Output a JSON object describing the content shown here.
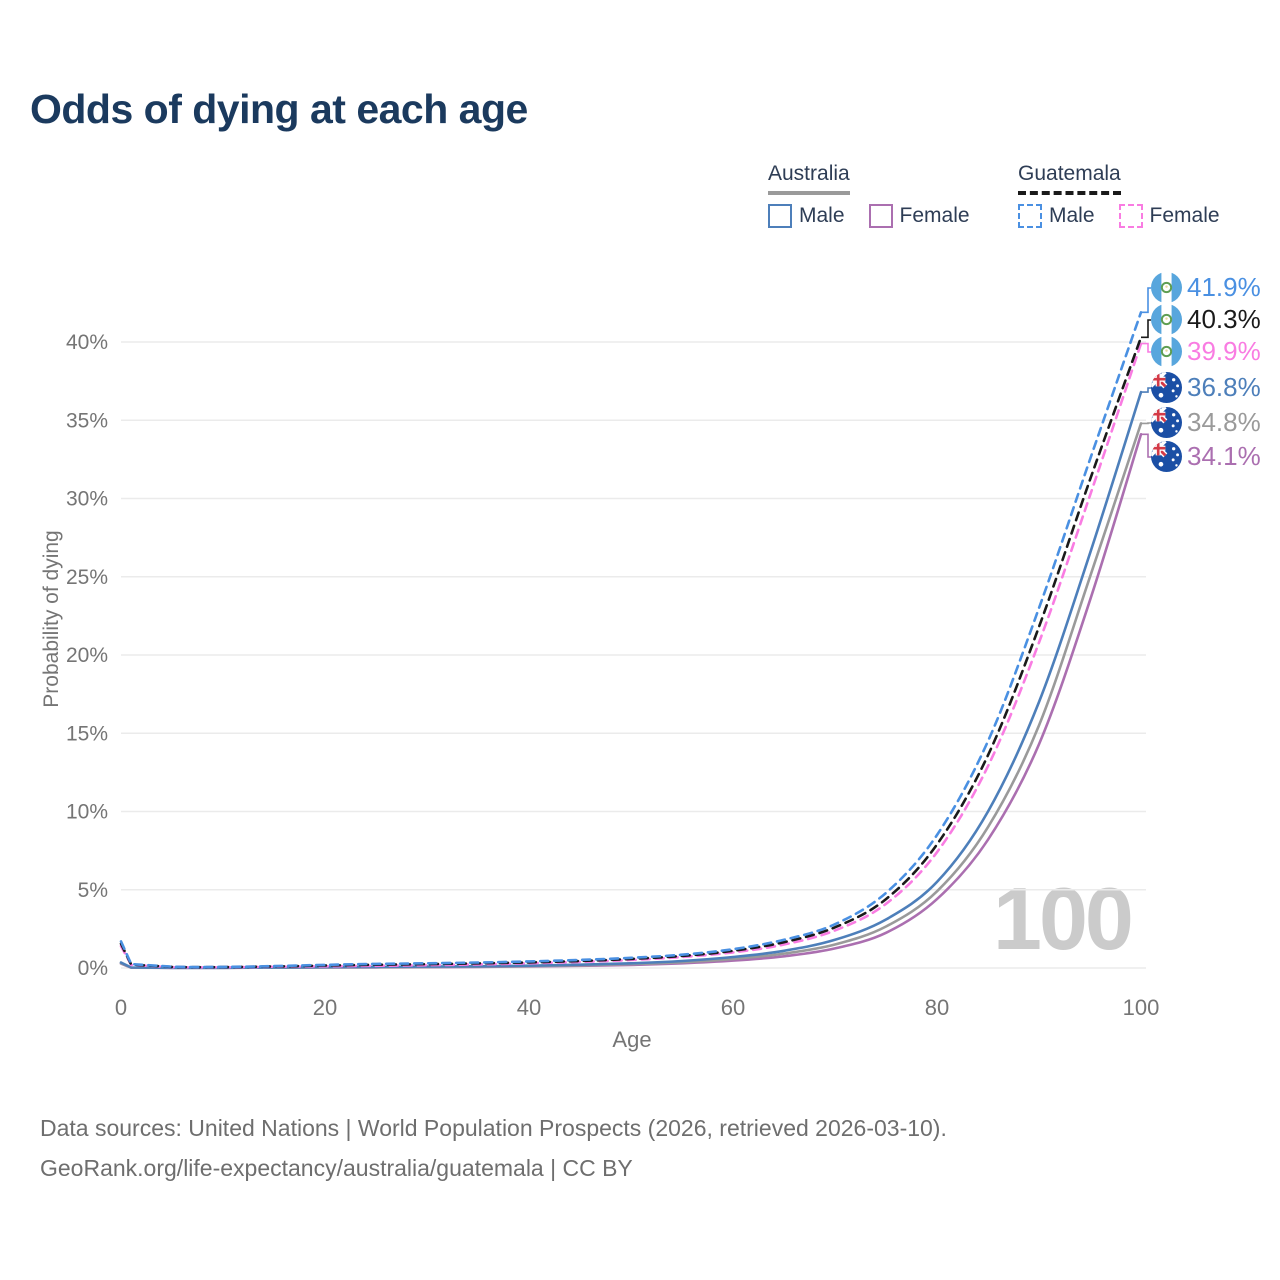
{
  "title": "Odds of dying at each age",
  "legend": {
    "australia": {
      "label": "Australia",
      "male": "Male",
      "female": "Female"
    },
    "guatemala": {
      "label": "Guatemala",
      "male": "Male",
      "female": "Female"
    }
  },
  "watermark": "100",
  "footer": {
    "line1": "Data sources: United Nations | World Population Prospects (2026, retrieved 2026-03-10).",
    "line2": "GeoRank.org/life-expectancy/australia/guatemala | CC BY"
  },
  "colors": {
    "title": "#1b3a5e",
    "legend_text": "#2e3d55",
    "axis_text": "#757575",
    "gridline": "#ebebeb",
    "watermark": "#cbcbcb",
    "footer_text": "#6e6e6e"
  },
  "chart_data": {
    "type": "line",
    "title": "Odds of dying at each age",
    "xlabel": "Age",
    "ylabel": "Probability of dying",
    "xlim": [
      0,
      100
    ],
    "ylim": [
      0,
      43
    ],
    "grid": true,
    "legend_position": "top-right",
    "x_ticks": [
      0,
      20,
      40,
      60,
      80,
      100
    ],
    "x_tick_labels": [
      "0",
      "20",
      "40",
      "60",
      "80",
      "100"
    ],
    "y_ticks": [
      0,
      5,
      10,
      15,
      20,
      25,
      30,
      35,
      40
    ],
    "y_tick_labels": [
      "0%",
      "5%",
      "10%",
      "15%",
      "20%",
      "25%",
      "30%",
      "35%",
      "40%"
    ],
    "ages": [
      0,
      1,
      5,
      10,
      15,
      20,
      25,
      30,
      35,
      40,
      45,
      50,
      55,
      60,
      65,
      70,
      75,
      80,
      85,
      90,
      95,
      100
    ],
    "series": [
      {
        "id": "guatemala-male",
        "name": "Guatemala Male",
        "country": "Guatemala",
        "sex": "Male",
        "color": "#4a90e2",
        "dash": true,
        "end_label": "41.9%",
        "end_value": 41.9,
        "values": [
          1.7,
          0.25,
          0.08,
          0.07,
          0.12,
          0.2,
          0.26,
          0.3,
          0.35,
          0.42,
          0.52,
          0.65,
          0.85,
          1.2,
          1.8,
          2.8,
          4.8,
          8.5,
          14.5,
          23.0,
          32.5,
          41.9
        ]
      },
      {
        "id": "guatemala-both",
        "name": "Guatemala",
        "country": "Guatemala",
        "sex": "Both",
        "color": "#1a1a1a",
        "dash": true,
        "end_label": "40.3%",
        "end_value": 40.3,
        "values": [
          1.55,
          0.22,
          0.07,
          0.06,
          0.1,
          0.16,
          0.21,
          0.25,
          0.3,
          0.36,
          0.45,
          0.58,
          0.77,
          1.1,
          1.65,
          2.6,
          4.4,
          7.9,
          13.6,
          21.8,
          31.2,
          40.3
        ]
      },
      {
        "id": "guatemala-female",
        "name": "Guatemala Female",
        "country": "Guatemala",
        "sex": "Female",
        "color": "#f97ce2",
        "dash": true,
        "end_label": "39.9%",
        "end_value": 39.9,
        "values": [
          1.4,
          0.2,
          0.06,
          0.05,
          0.08,
          0.11,
          0.14,
          0.18,
          0.23,
          0.3,
          0.39,
          0.51,
          0.7,
          1.0,
          1.5,
          2.4,
          4.1,
          7.4,
          12.9,
          20.8,
          30.2,
          39.9
        ]
      },
      {
        "id": "australia-male",
        "name": "Australia Male",
        "country": "Australia",
        "sex": "Male",
        "color": "#4d7fba",
        "dash": false,
        "end_label": "36.8%",
        "end_value": 36.8,
        "values": [
          0.35,
          0.03,
          0.01,
          0.01,
          0.03,
          0.06,
          0.07,
          0.09,
          0.11,
          0.15,
          0.21,
          0.3,
          0.45,
          0.7,
          1.1,
          1.8,
          3.1,
          5.5,
          10.0,
          17.0,
          26.5,
          36.8
        ]
      },
      {
        "id": "australia-both",
        "name": "Australia",
        "country": "Australia",
        "sex": "Both",
        "color": "#9a9a9a",
        "dash": false,
        "end_label": "34.8%",
        "end_value": 34.8,
        "values": [
          0.3,
          0.025,
          0.01,
          0.01,
          0.02,
          0.04,
          0.05,
          0.07,
          0.09,
          0.12,
          0.17,
          0.25,
          0.37,
          0.58,
          0.92,
          1.5,
          2.65,
          4.9,
          9.0,
          15.5,
          25.0,
          34.8
        ]
      },
      {
        "id": "australia-female",
        "name": "Australia Female",
        "country": "Australia",
        "sex": "Female",
        "color": "#ab6fb0",
        "dash": false,
        "end_label": "34.1%",
        "end_value": 34.1,
        "values": [
          0.28,
          0.02,
          0.01,
          0.01,
          0.02,
          0.03,
          0.04,
          0.05,
          0.07,
          0.1,
          0.14,
          0.2,
          0.3,
          0.47,
          0.75,
          1.25,
          2.25,
          4.4,
          8.2,
          14.3,
          23.5,
          34.1
        ]
      }
    ]
  }
}
